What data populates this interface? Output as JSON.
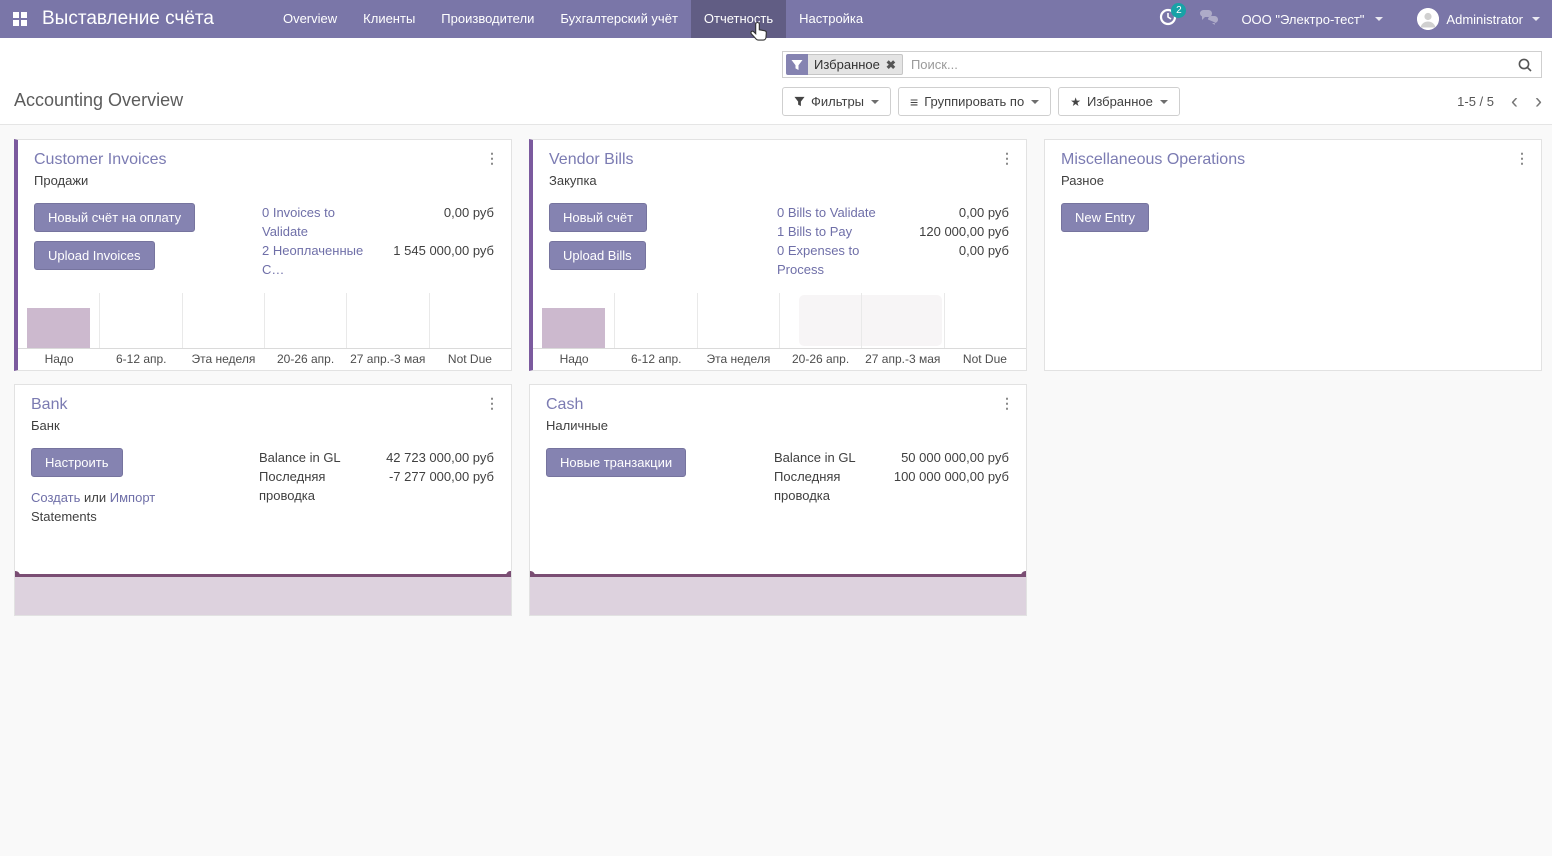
{
  "colors": {
    "navbar_bg": "#7a76a8",
    "navbar_active_bg": "#615d84",
    "badge_teal": "#18a2a6",
    "button_purple": "#8583b1",
    "card_accent_stripe": "#7b5a9e",
    "card_title": "#7b7bb2",
    "link": "#6f6fa8",
    "bar_fill": "#ccb9ce",
    "spark_line": "#7a4d73",
    "spark_fill": "#ddd2de"
  },
  "navbar": {
    "app_title": "Выставление счёта",
    "items": [
      {
        "label": "Overview"
      },
      {
        "label": "Клиенты"
      },
      {
        "label": "Производители"
      },
      {
        "label": "Бухгалтерский учёт"
      },
      {
        "label": "Отчетность",
        "active": true
      },
      {
        "label": "Настройка"
      }
    ],
    "activity_count": "2",
    "company": "ООО \"Электро-тест\"",
    "user": "Administrator"
  },
  "control_panel": {
    "page_title": "Accounting Overview",
    "search": {
      "facet_label": "Избранное",
      "placeholder": "Поиск..."
    },
    "filters_button": "Фильтры",
    "group_by_button": "Группировать по",
    "favorites_button": "Избранное",
    "pager": "1-5 / 5"
  },
  "cards": [
    {
      "title": "Customer Invoices",
      "subtitle": "Продажи",
      "buttons": [
        "Новый счёт на оплату",
        "Upload Invoices"
      ],
      "stats": [
        {
          "label": "0 Invoices to Validate",
          "value": "0,00 руб"
        },
        {
          "label": "2 Неоплаченные С…",
          "value": "1 545 000,00 руб"
        }
      ],
      "chart": {
        "type": "bar",
        "categories": [
          "Надо",
          "6-12 апр.",
          "Эта неделя",
          "20-26 апр.",
          "27 апр.-3 мая",
          "Not Due"
        ],
        "values": [
          1545000,
          0,
          0,
          0,
          0,
          0
        ]
      }
    },
    {
      "title": "Vendor Bills",
      "subtitle": "Закупка",
      "buttons": [
        "Новый счёт",
        "Upload Bills"
      ],
      "stats": [
        {
          "label": "0 Bills to Validate",
          "value": "0,00 руб"
        },
        {
          "label": "1 Bills to Pay",
          "value": "120 000,00 руб"
        },
        {
          "label": "0 Expenses to Process",
          "value": "0,00 руб"
        }
      ],
      "chart": {
        "type": "bar",
        "categories": [
          "Надо",
          "6-12 апр.",
          "Эта неделя",
          "20-26 апр.",
          "27 апр.-3 мая",
          "Not Due"
        ],
        "values": [
          120000,
          0,
          0,
          0,
          0,
          0
        ]
      }
    },
    {
      "title": "Miscellaneous Operations",
      "subtitle": "Разное",
      "buttons": [
        "New Entry"
      ]
    },
    {
      "title": "Bank",
      "subtitle": "Банк",
      "buttons": [
        "Настроить"
      ],
      "links_line": {
        "create": "Создать",
        "or": "или",
        "import": "Импорт",
        "suffix": "Statements"
      },
      "stats": [
        {
          "label": "Balance in GL",
          "value": "42 723 000,00 руб"
        },
        {
          "label": "Последняя проводка",
          "value": "-7 277 000,00 руб"
        }
      ],
      "sparkline": {
        "type": "area",
        "trend": "flat"
      }
    },
    {
      "title": "Cash",
      "subtitle": "Наличные",
      "buttons": [
        "Новые транзакции"
      ],
      "stats": [
        {
          "label": "Balance in GL",
          "value": "50 000 000,00 руб"
        },
        {
          "label": "Последняя проводка",
          "value": "100 000 000,00 руб"
        }
      ],
      "sparkline": {
        "type": "area",
        "trend": "flat"
      }
    }
  ]
}
